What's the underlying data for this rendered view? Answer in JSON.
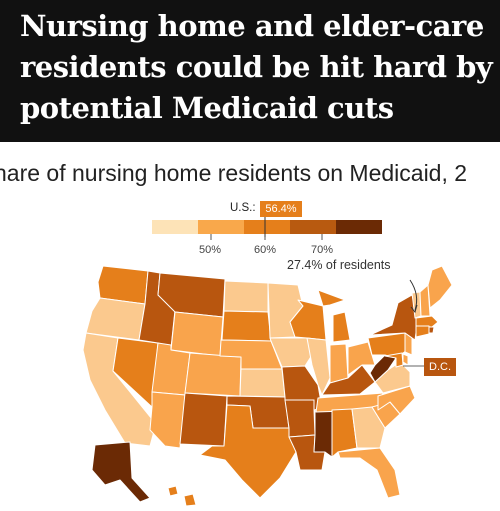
{
  "headline": {
    "line1": "Nursing home and elder-care",
    "line2": "residents could be hit hard by",
    "line3": "potential Medicaid cuts"
  },
  "subtitle": "hare of nursing home residents on Medicaid, 2",
  "legend": {
    "us_label": "U.S.:",
    "us_value": "56.4%",
    "tick_labels": [
      "50%",
      "60%",
      "70%"
    ],
    "bin_colors": [
      "#fde3b7",
      "#f9a84b",
      "#e57f1b",
      "#b85a10",
      "#6b2a05"
    ]
  },
  "annotation": {
    "callout_text": "27.4% of residents",
    "dc_label": "D.C."
  },
  "map_data": {
    "us_value": 56.4,
    "bins": [
      "<50%",
      "50–55%",
      "55–60%",
      "60–65%",
      "65–70%",
      ">70%"
    ],
    "bin_colors": [
      "#fde6c2",
      "#fbc98e",
      "#f9a44c",
      "#e57f1b",
      "#b8560f",
      "#6b2a05"
    ],
    "states": {
      "WA": 3,
      "OR": 1,
      "CA": 1,
      "NV": 3,
      "ID": 4,
      "MT": 4,
      "WY": 2,
      "UT": 2,
      "AZ": 2,
      "CO": 2,
      "NM": 4,
      "ND": 1,
      "SD": 3,
      "NE": 2,
      "KS": 1,
      "OK": 4,
      "TX": 3,
      "MN": 1,
      "IA": 1,
      "MO": 4,
      "AR": 4,
      "LA": 4,
      "WI": 3,
      "IL": 1,
      "MS": 5,
      "MI": 3,
      "IN": 2,
      "KY": 4,
      "TN": 2,
      "AL": 3,
      "GA": 1,
      "FL": 2,
      "SC": 2,
      "NC": 2,
      "VA": 1,
      "WV": 5,
      "OH": 2,
      "PA": 3,
      "NY": 4,
      "VT": 1,
      "NH": 2,
      "ME": 2,
      "MA": 3,
      "RI": 4,
      "CT": 3,
      "NJ": 2,
      "DE": 2,
      "MD": 3,
      "AK": 5,
      "HI": 3,
      "DC": 4
    }
  }
}
